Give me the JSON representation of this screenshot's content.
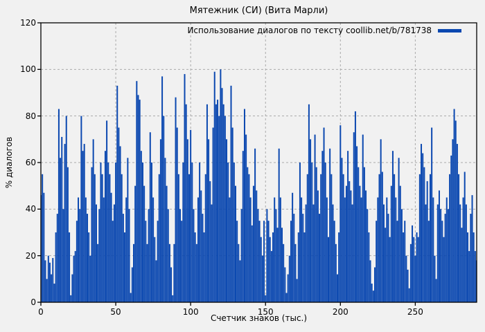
{
  "window": {
    "title": "Мятежник (СИ) (Вита Марли)"
  },
  "legend": {
    "label": "Использование диалогов по тексту coollib.net/b/781738"
  },
  "colors": {
    "bar": "#0b48b0",
    "background": "#f1f1f1",
    "grid": "#a9a9a9",
    "axis": "#000000",
    "text": "#000000"
  },
  "chart_data": {
    "type": "bar",
    "title": "Мятежник (СИ) (Вита Марли)",
    "xlabel": "Счетчик знаков (тыс.)",
    "ylabel": "% диалогов",
    "xlim": [
      0,
      291
    ],
    "ylim": [
      0,
      120
    ],
    "xticks": [
      0,
      50,
      100,
      150,
      200,
      250
    ],
    "yticks": [
      0,
      20,
      40,
      60,
      80,
      100,
      120
    ],
    "grid": true,
    "grid_style": "dashed",
    "legend_position": "top-right-inside",
    "x_start": 0,
    "x_step": 1,
    "series": [
      {
        "name": "Использование диалогов по тексту coollib.net/b/781738",
        "color": "#0b48b0",
        "values": [
          46,
          55,
          47,
          18,
          10,
          20,
          17,
          12,
          19,
          8,
          30,
          38,
          83,
          62,
          71,
          40,
          68,
          80,
          58,
          30,
          3,
          12,
          20,
          22,
          35,
          45,
          40,
          80,
          65,
          68,
          45,
          38,
          30,
          20,
          58,
          70,
          55,
          42,
          25,
          40,
          60,
          55,
          45,
          65,
          78,
          60,
          55,
          47,
          35,
          42,
          60,
          93,
          75,
          67,
          55,
          38,
          30,
          45,
          62,
          40,
          4,
          15,
          25,
          50,
          95,
          89,
          87,
          65,
          60,
          50,
          35,
          25,
          40,
          73,
          60,
          45,
          28,
          18,
          35,
          55,
          70,
          97,
          80,
          62,
          50,
          40,
          25,
          15,
          3,
          25,
          88,
          75,
          55,
          40,
          35,
          60,
          98,
          85,
          70,
          55,
          74,
          60,
          40,
          30,
          25,
          45,
          60,
          48,
          38,
          30,
          55,
          85,
          70,
          52,
          42,
          75,
          99,
          85,
          87,
          80,
          100,
          92,
          85,
          80,
          70,
          60,
          45,
          93,
          75,
          60,
          50,
          35,
          25,
          18,
          40,
          65,
          83,
          72,
          58,
          55,
          45,
          33,
          50,
          66,
          48,
          40,
          35,
          28,
          20,
          35,
          3,
          40,
          35,
          28,
          22,
          30,
          45,
          40,
          32,
          66,
          45,
          32,
          25,
          15,
          4,
          12,
          20,
          35,
          47,
          38,
          25,
          10,
          30,
          60,
          45,
          38,
          30,
          42,
          55,
          85,
          70,
          60,
          42,
          72,
          58,
          48,
          38,
          55,
          65,
          75,
          60,
          45,
          28,
          66,
          55,
          42,
          35,
          25,
          12,
          30,
          76,
          62,
          55,
          45,
          50,
          65,
          52,
          48,
          42,
          73,
          82,
          67,
          58,
          50,
          45,
          72,
          58,
          48,
          40,
          30,
          18,
          8,
          5,
          15,
          35,
          45,
          55,
          70,
          56,
          42,
          32,
          45,
          38,
          28,
          50,
          65,
          55,
          45,
          35,
          62,
          50,
          40,
          30,
          35,
          20,
          14,
          6,
          25,
          33,
          28,
          20,
          30,
          28,
          55,
          68,
          64,
          58,
          42,
          52,
          35,
          55,
          75,
          45,
          20,
          10,
          42,
          48,
          40,
          35,
          28,
          38,
          45,
          40,
          55,
          63,
          70,
          83,
          78,
          68,
          55,
          42,
          32,
          45,
          56,
          42,
          30,
          22,
          38,
          46,
          30,
          22,
          18
        ]
      }
    ]
  }
}
